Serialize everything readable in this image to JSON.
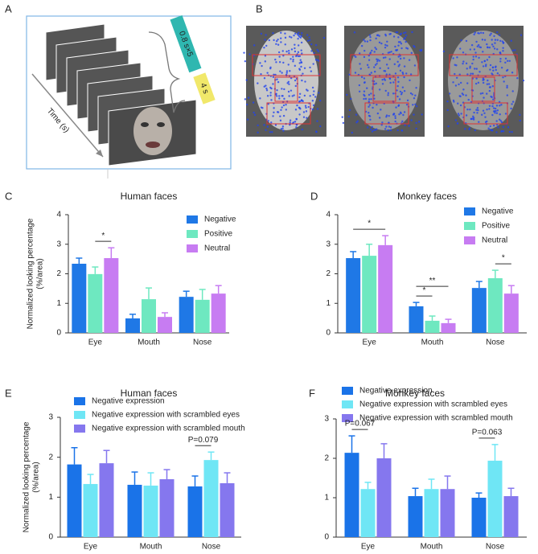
{
  "schematic": {
    "panel": "A",
    "time_label": "Time (s)",
    "scramble_duration": "0.8 s×5",
    "face_duration": "4 s"
  },
  "heatmaps": {
    "panel": "B"
  },
  "chart_data": [
    {
      "type": "bar",
      "panel": "C",
      "title": "Human faces",
      "ylabel": [
        "Normalized looking percentage",
        "(%/area)"
      ],
      "categories": [
        "Eye",
        "Mouth",
        "Nose"
      ],
      "ylim": [
        0,
        4
      ],
      "yticks": [
        0,
        1,
        2,
        3,
        4
      ],
      "series": [
        {
          "name": "Negative",
          "color": "#1f78e6",
          "values": [
            2.34,
            0.49,
            1.22
          ],
          "errors": [
            0.19,
            0.14,
            0.19
          ]
        },
        {
          "name": "Positive",
          "color": "#6ee8c0",
          "values": [
            1.99,
            1.14,
            1.12
          ],
          "errors": [
            0.24,
            0.38,
            0.35
          ]
        },
        {
          "name": "Neutral",
          "color": "#c77cf2",
          "values": [
            2.53,
            0.54,
            1.33
          ],
          "errors": [
            0.35,
            0.14,
            0.27
          ]
        }
      ],
      "annotations": [
        {
          "category": "Eye",
          "between": [
            "Positive",
            "Neutral"
          ],
          "text": "*"
        }
      ]
    },
    {
      "type": "bar",
      "panel": "D",
      "title": "Monkey faces",
      "categories": [
        "Eye",
        "Mouth",
        "Nose"
      ],
      "ylim": [
        0,
        4
      ],
      "yticks": [
        0,
        1,
        2,
        3,
        4
      ],
      "series": [
        {
          "name": "Negative",
          "color": "#1f78e6",
          "values": [
            2.53,
            0.9,
            1.52
          ],
          "errors": [
            0.22,
            0.13,
            0.22
          ]
        },
        {
          "name": "Positive",
          "color": "#6ee8c0",
          "values": [
            2.61,
            0.41,
            1.85
          ],
          "errors": [
            0.39,
            0.16,
            0.27
          ]
        },
        {
          "name": "Neutral",
          "color": "#c77cf2",
          "values": [
            2.97,
            0.33,
            1.33
          ],
          "errors": [
            0.32,
            0.13,
            0.27
          ]
        }
      ],
      "annotations": [
        {
          "category": "Eye",
          "between": [
            "Negative",
            "Neutral"
          ],
          "text": "*"
        },
        {
          "category": "Mouth",
          "between": [
            "Negative",
            "Positive"
          ],
          "text": "*"
        },
        {
          "category": "Mouth",
          "between": [
            "Negative",
            "Neutral"
          ],
          "text": "**"
        },
        {
          "category": "Nose",
          "between": [
            "Positive",
            "Neutral"
          ],
          "text": "*"
        }
      ]
    },
    {
      "type": "bar",
      "panel": "E",
      "title": "Human faces",
      "ylabel": [
        "Normalized looking percentage",
        "(%/area)"
      ],
      "categories": [
        "Eye",
        "Mouth",
        "Nose"
      ],
      "ylim": [
        0,
        3
      ],
      "yticks": [
        0,
        1,
        2,
        3
      ],
      "series": [
        {
          "name": "Negative expression",
          "color": "#1a73e8",
          "values": [
            1.82,
            1.31,
            1.27
          ],
          "errors": [
            0.42,
            0.32,
            0.26
          ]
        },
        {
          "name": "Negative expression with scrambled eyes",
          "color": "#6fe6f5",
          "values": [
            1.33,
            1.29,
            1.93
          ],
          "errors": [
            0.24,
            0.32,
            0.2
          ]
        },
        {
          "name": "Negative expression with scrambled mouth",
          "color": "#8577ee",
          "values": [
            1.85,
            1.45,
            1.35
          ],
          "errors": [
            0.32,
            0.24,
            0.26
          ]
        }
      ],
      "annotations": [
        {
          "category": "Nose",
          "between": [
            "Negative expression",
            "Negative expression with scrambled eyes"
          ],
          "text": "P=0.079"
        }
      ]
    },
    {
      "type": "bar",
      "panel": "F",
      "title": "Monkey faces",
      "categories": [
        "Eye",
        "Mouth",
        "Nose"
      ],
      "ylim": [
        0,
        3
      ],
      "yticks": [
        0,
        1,
        2,
        3
      ],
      "series": [
        {
          "name": "Negative expression",
          "color": "#1a73e8",
          "values": [
            2.14,
            1.04,
            1.0
          ],
          "errors": [
            0.43,
            0.2,
            0.12
          ]
        },
        {
          "name": "Negative expression with scrambled eyes",
          "color": "#6fe6f5",
          "values": [
            1.22,
            1.22,
            1.94
          ],
          "errors": [
            0.17,
            0.25,
            0.41
          ]
        },
        {
          "name": "Negative expression with scrambled mouth",
          "color": "#8577ee",
          "values": [
            2.0,
            1.22,
            1.04
          ],
          "errors": [
            0.37,
            0.33,
            0.2
          ]
        }
      ],
      "annotations": [
        {
          "category": "Eye",
          "between": [
            "Negative expression",
            "Negative expression with scrambled eyes"
          ],
          "text": "P=0.067"
        },
        {
          "category": "Nose",
          "between": [
            "Negative expression",
            "Negative expression with scrambled eyes"
          ],
          "text": "P=0.063"
        }
      ]
    }
  ]
}
